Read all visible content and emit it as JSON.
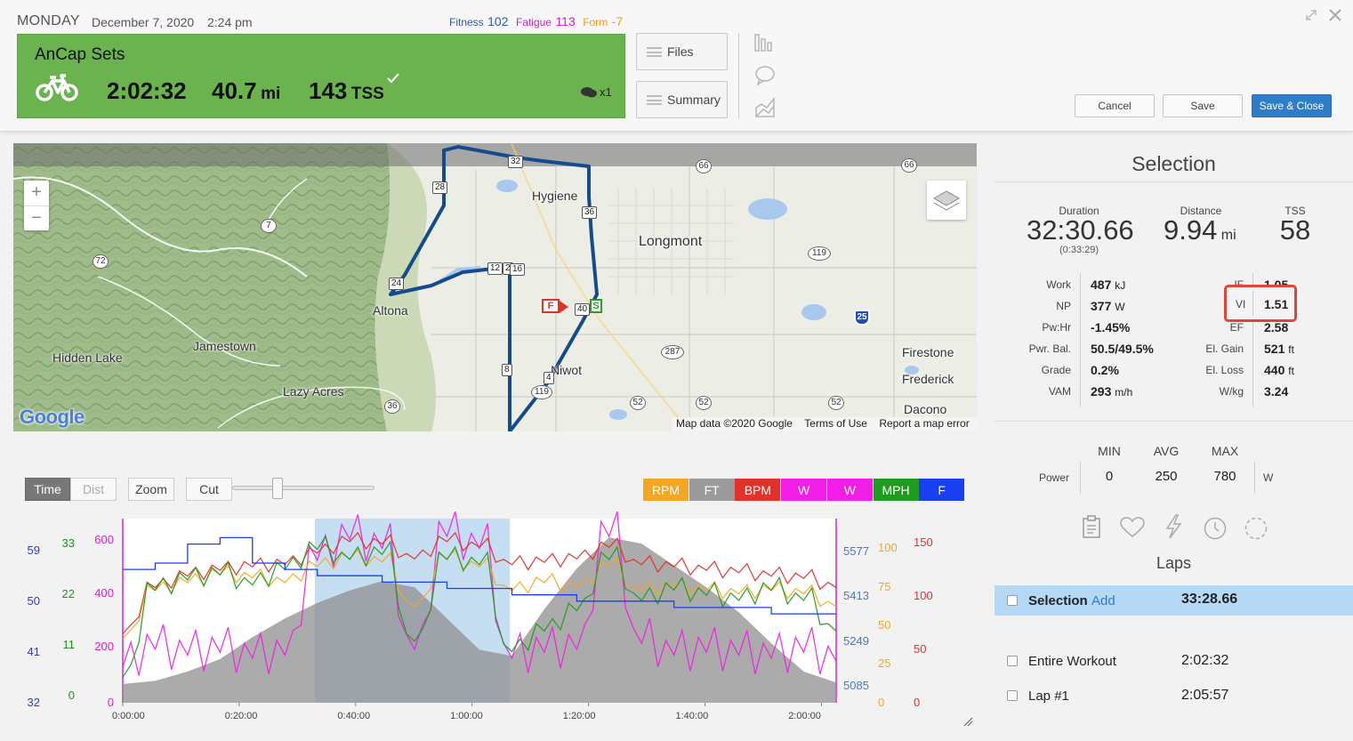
{
  "header": {
    "day": "MONDAY",
    "date": "December 7, 2020",
    "time": "2:24 pm",
    "fitness_label": "Fitness",
    "fitness_value": "102",
    "fatigue_label": "Fatigue",
    "fatigue_value": "113",
    "form_label": "Form",
    "form_value": "-7"
  },
  "workout": {
    "title": "AnCap Sets",
    "duration": "2:02:32",
    "distance": "40.7",
    "distance_unit": "mi",
    "tss": "143",
    "tss_unit": "TSS",
    "comments": "x1"
  },
  "buttons": {
    "files": "Files",
    "summary": "Summary",
    "cancel": "Cancel",
    "save": "Save",
    "save_close": "Save & Close"
  },
  "map": {
    "places": [
      "Longmont",
      "Altona",
      "Jamestown",
      "Hidden Lake",
      "Lazy Acres",
      "Firestone",
      "Frederick",
      "Dacono",
      "Hygiene",
      "Niwot"
    ],
    "routes": [
      "32",
      "28",
      "36",
      "12",
      "2",
      "16",
      "24",
      "40",
      "8",
      "4"
    ],
    "highways": [
      "66",
      "66",
      "7",
      "72",
      "119",
      "287",
      "52",
      "52",
      "52",
      "36",
      "119"
    ],
    "interstate": "25",
    "google": "Google",
    "attribution": "Map data ©2020 Google",
    "terms": "Terms of Use",
    "report": "Report a map error",
    "marker_finish": "F",
    "marker_start": "S"
  },
  "selection": {
    "title": "Selection",
    "duration_label": "Duration",
    "duration": "32:30.66",
    "duration_sub": "(0:33:29)",
    "distance_label": "Distance",
    "distance": "9.94",
    "distance_unit": "mi",
    "tss_label": "TSS",
    "tss": "58",
    "left_stats": [
      {
        "label": "Work",
        "value": "487",
        "unit": "kJ"
      },
      {
        "label": "NP",
        "value": "377",
        "unit": "W"
      },
      {
        "label": "Pw:Hr",
        "value": "-1.45%",
        "unit": ""
      },
      {
        "label": "Pwr. Bal.",
        "value": "50.5/49.5%",
        "unit": ""
      },
      {
        "label": "Grade",
        "value": "0.2%",
        "unit": ""
      },
      {
        "label": "VAM",
        "value": "293",
        "unit": "m/h"
      }
    ],
    "right_stats": [
      {
        "label": "IF",
        "value": "1.05",
        "unit": ""
      },
      {
        "label": "VI",
        "value": "1.51",
        "unit": ""
      },
      {
        "label": "EF",
        "value": "2.58",
        "unit": ""
      },
      {
        "label": "El. Gain",
        "value": "521",
        "unit": "ft"
      },
      {
        "label": "El. Loss",
        "value": "440",
        "unit": "ft"
      },
      {
        "label": "W/kg",
        "value": "3.24",
        "unit": ""
      }
    ],
    "power_table": {
      "headers": [
        "MIN",
        "AVG",
        "MAX"
      ],
      "row_label": "Power",
      "values": [
        "0",
        "250",
        "780"
      ],
      "unit": "W"
    }
  },
  "laps": {
    "title": "Laps",
    "rows": [
      {
        "name": "Selection",
        "action": "Add",
        "time": "33:28.66"
      },
      {
        "name": "Entire Workout",
        "time": "2:02:32"
      },
      {
        "name": "Lap #1",
        "time": "2:05:57"
      }
    ]
  },
  "chart_toolbar": {
    "time": "Time",
    "dist": "Dist",
    "zoom": "Zoom",
    "cut": "Cut",
    "zoom_slider_fraction": 0.3,
    "channels": [
      {
        "label": "RPM",
        "color": "#f5a623"
      },
      {
        "label": "FT",
        "color": "#9b9b9b"
      },
      {
        "label": "BPM",
        "color": "#e0322a"
      },
      {
        "label": "W",
        "color": "#f01ee6"
      },
      {
        "label": "W",
        "color": "#f01ee6"
      },
      {
        "label": "MPH",
        "color": "#1f9c1f"
      },
      {
        "label": "F",
        "color": "#1a3ff0"
      }
    ]
  },
  "chart_data": {
    "type": "line",
    "x_ticks": [
      "0:00:00",
      "0:20:00",
      "0:40:00",
      "1:00:00",
      "1:20:00",
      "1:40:00",
      "2:00:00"
    ],
    "selection_range": [
      "0:33:00",
      "1:06:30"
    ],
    "axes": {
      "temp_blue": {
        "ticks": [
          "59",
          "50",
          "41",
          "32"
        ],
        "color": "#2a3bd6"
      },
      "speed_green": {
        "ticks": [
          "33",
          "22",
          "11",
          "0"
        ],
        "color": "#1f8f1f"
      },
      "power_magenta": {
        "ticks": [
          "600",
          "400",
          "200",
          "0"
        ],
        "color": "#e01ed6"
      },
      "elevation_ft": {
        "ticks": [
          "5577",
          "5413",
          "5249",
          "5085"
        ],
        "color": "#4a7bbf"
      },
      "cadence_rpm": {
        "ticks": [
          "100",
          "75",
          "50",
          "25",
          "0"
        ],
        "color": "#f5a623"
      },
      "heartrate_bpm": {
        "ticks": [
          "150",
          "100",
          "50",
          "0"
        ],
        "color": "#e0322a"
      }
    },
    "series": [
      {
        "name": "FT",
        "values": [
          5090,
          5100,
          5130,
          5170,
          5240,
          5300,
          5350,
          5390,
          5420,
          5400,
          5300,
          5200,
          5180,
          5330,
          5460,
          5560,
          5540,
          5470,
          5400,
          5320,
          5220,
          5130,
          5095
        ]
      },
      {
        "name": "W",
        "values": [
          120,
          180,
          160,
          170,
          150,
          160,
          480,
          550,
          520,
          180,
          560,
          520,
          150,
          170,
          180,
          560,
          200,
          160,
          170,
          160,
          150,
          170,
          140
        ]
      },
      {
        "name": "BPM",
        "values": [
          60,
          100,
          110,
          115,
          118,
          120,
          130,
          140,
          138,
          125,
          140,
          135,
          120,
          122,
          125,
          135,
          120,
          118,
          115,
          113,
          110,
          108,
          100
        ]
      },
      {
        "name": "RPM",
        "values": [
          40,
          70,
          75,
          80,
          78,
          75,
          85,
          90,
          88,
          60,
          90,
          85,
          70,
          75,
          72,
          85,
          70,
          72,
          70,
          68,
          70,
          68,
          60
        ]
      },
      {
        "name": "MPH",
        "values": [
          5,
          22,
          24,
          25,
          23,
          26,
          30,
          28,
          29,
          12,
          28,
          27,
          10,
          14,
          18,
          28,
          20,
          22,
          21,
          20,
          22,
          20,
          14
        ]
      },
      {
        "name": "F",
        "values": [
          52,
          53,
          56,
          57,
          53,
          52,
          51,
          51,
          50,
          50,
          49,
          49,
          48,
          48,
          47,
          47,
          47,
          46,
          46,
          46,
          45,
          45,
          45
        ]
      }
    ]
  }
}
